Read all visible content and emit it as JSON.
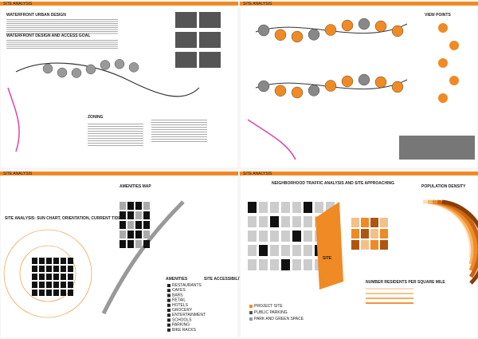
{
  "panels": [
    {
      "header": "SITE ANALYSIS",
      "headings": [
        "WATERFRONT URBAN DESIGN",
        "WATERFRONT DESIGN AND ACCESS GOAL",
        "ZONING"
      ]
    },
    {
      "header": "SITE ANALYSIS",
      "headings": [
        "VIEW POINTS"
      ]
    },
    {
      "header": "SITE ANALYSIS",
      "headings": [
        "SITE ANALYSIS: SUN CHART, ORIENTATION, CURRENT TIDE",
        "AMENITIES MAP",
        "AMENITIES",
        "SITE ACCESSIBILITY"
      ],
      "legend": [
        "RESTAURANTS",
        "CAFES",
        "BARS",
        "RETAIL",
        "HOTELS",
        "GROCERY",
        "ENTERTAINMENT",
        "SCHOOLS",
        "PARKING",
        "BIKE RACKS"
      ]
    },
    {
      "header": "SITE ANALYSIS",
      "headings": [
        "NEIGHBORHOOD TRAFFIC ANALYSIS AND SITE APPROACHING",
        "POPULATION DENSITY",
        "SITE",
        "NUMBER RESIDENTS PER SQUARE MILE"
      ],
      "legend": [
        "PROJECT SITE",
        "PUBLIC PARKING",
        "PARK AND GREEN SPACE"
      ]
    }
  ]
}
